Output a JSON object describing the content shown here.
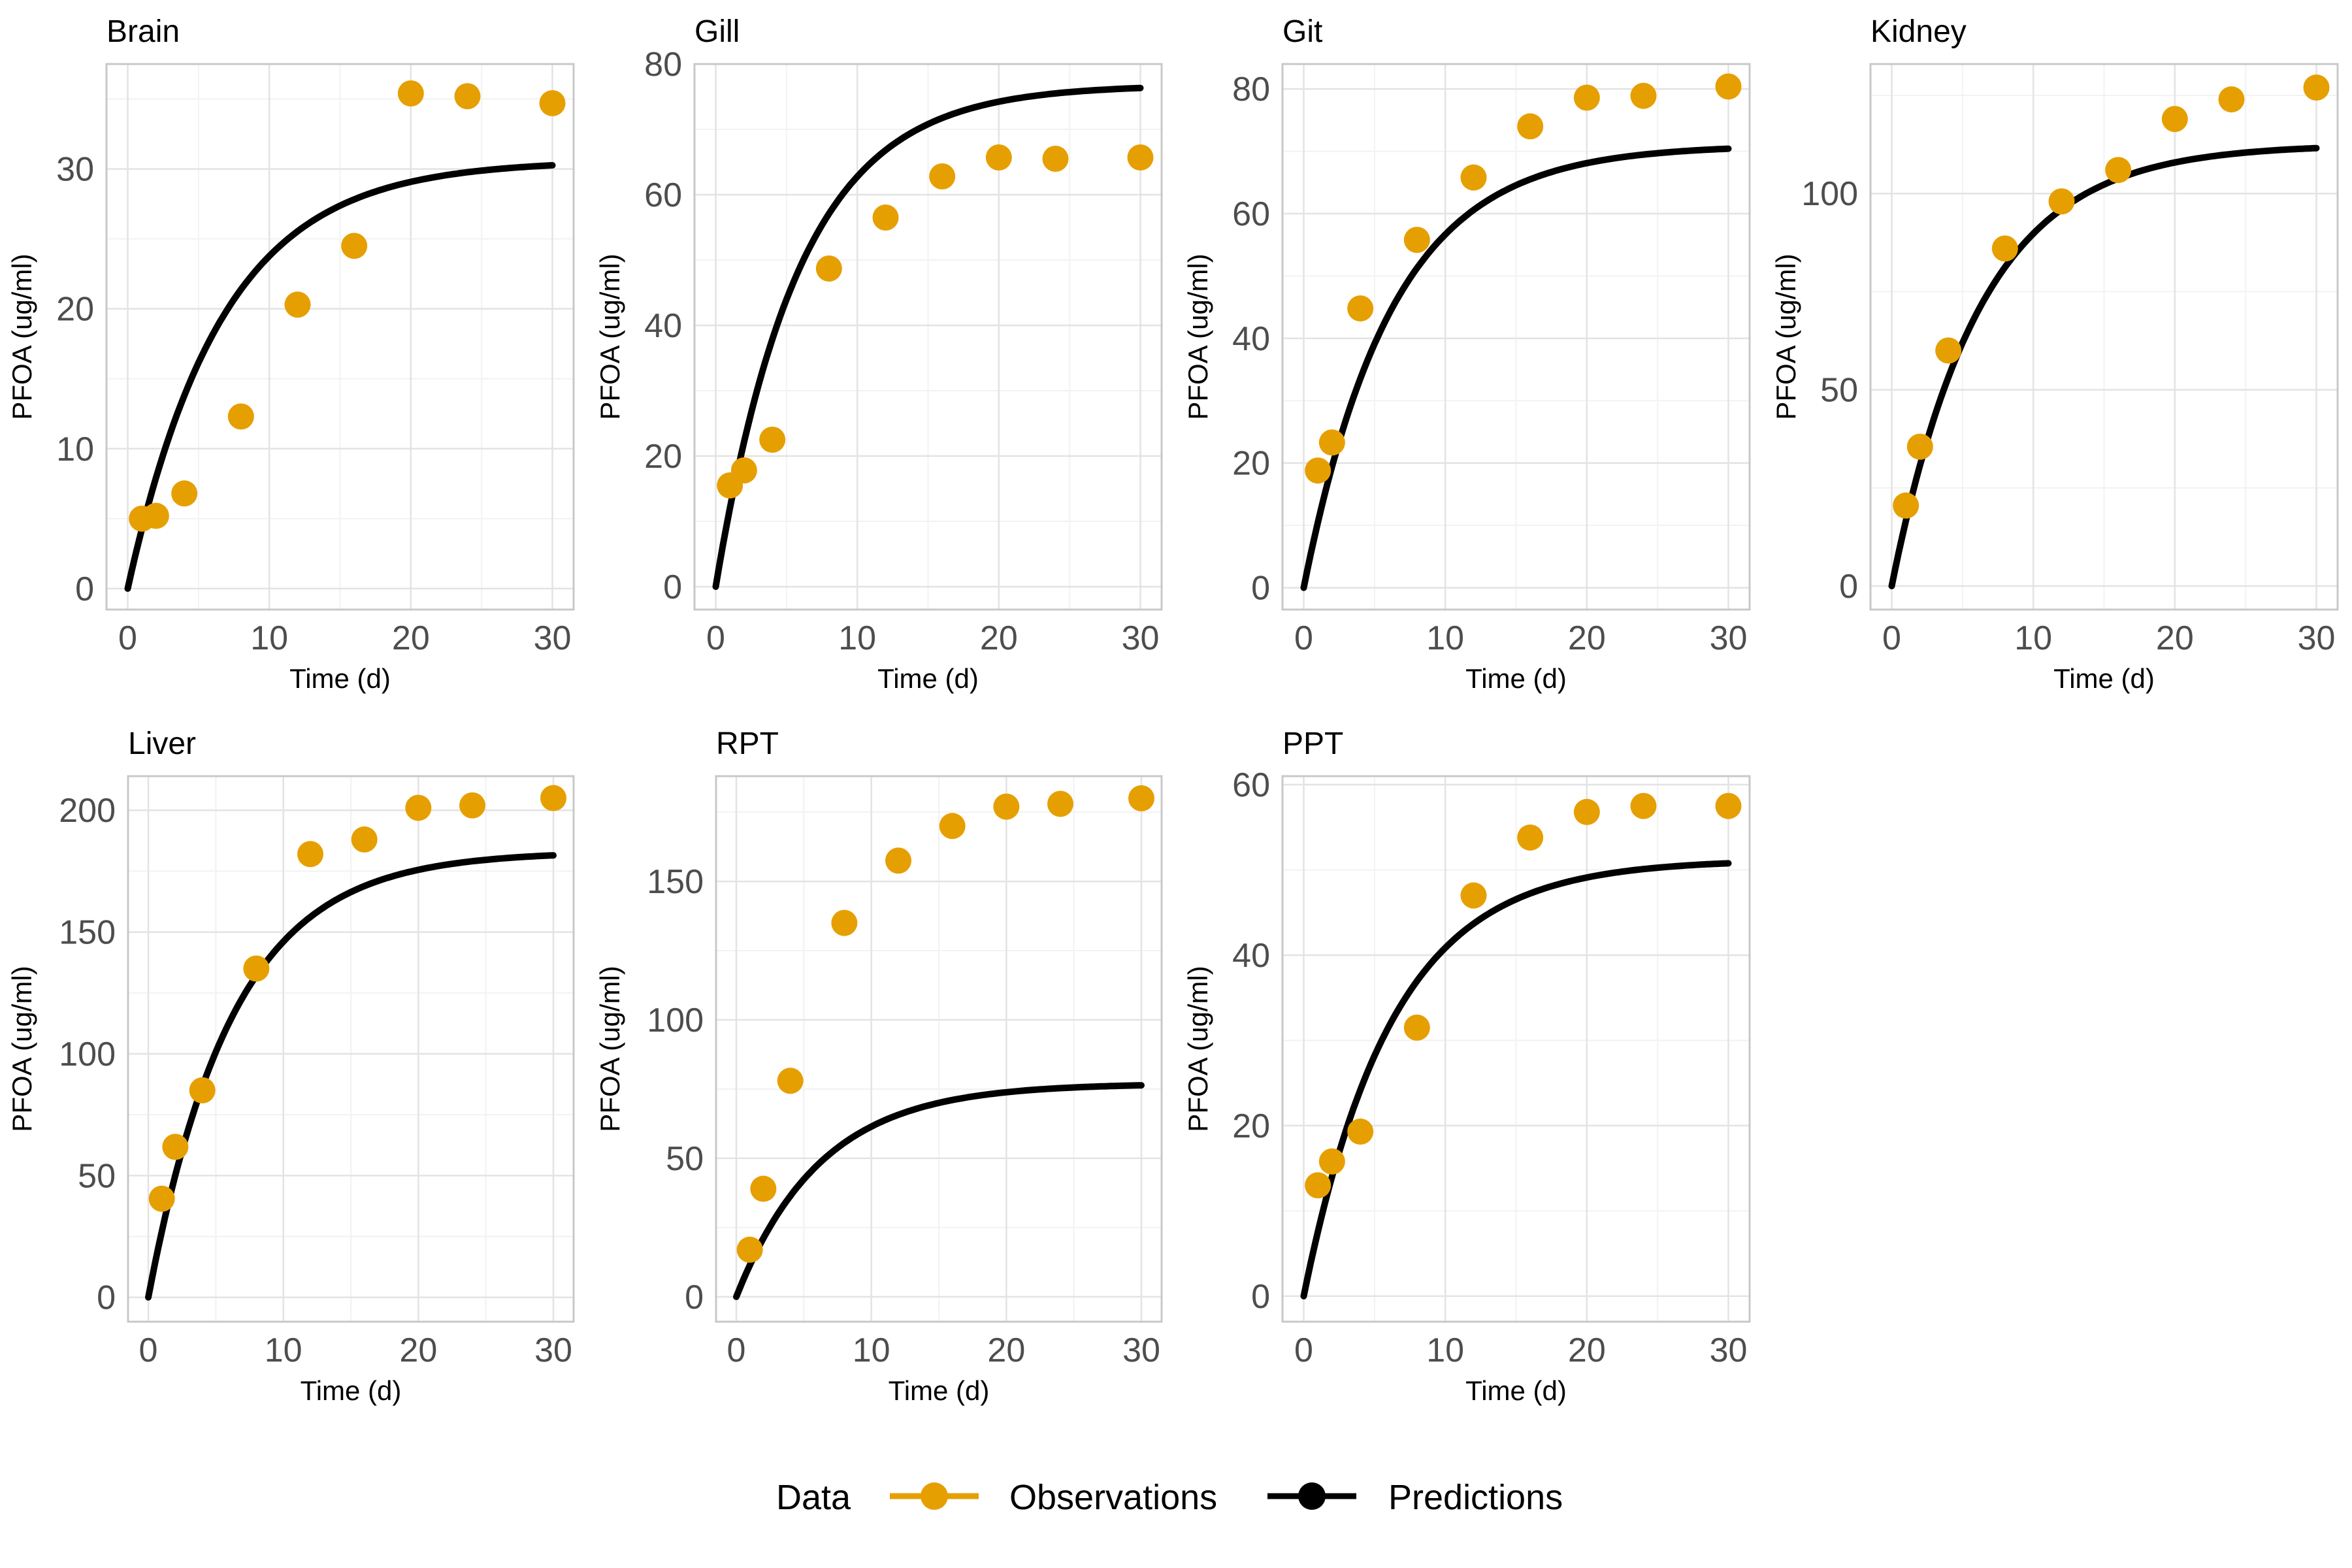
{
  "colors": {
    "observations": "#E69F00",
    "predictions": "#000000",
    "grid_major": "#e3e3e3",
    "grid_minor": "#f2f2f2",
    "panel_border": "#c8c8c8"
  },
  "legend": {
    "title": "Data",
    "items": [
      {
        "label": "Observations",
        "kind": "point-line",
        "color": "#E69F00"
      },
      {
        "label": "Predictions",
        "kind": "point-line",
        "color": "#000000"
      }
    ]
  },
  "chart_data": [
    {
      "type": "scatter+line",
      "title": "Brain",
      "xlabel": "Time (d)",
      "ylabel": "PFOA (ug/ml)",
      "xlim": [
        -1.5,
        31.5
      ],
      "ylim": [
        -1.5,
        37.5
      ],
      "xticks": [
        0,
        10,
        20,
        30
      ],
      "yticks": [
        0,
        10,
        20,
        30
      ],
      "observations": {
        "x": [
          1,
          2,
          4,
          8,
          12,
          16,
          20,
          24,
          30
        ],
        "y": [
          5.0,
          5.2,
          6.8,
          12.3,
          20.3,
          24.5,
          35.4,
          35.2,
          34.7
        ]
      },
      "predictions": {
        "plateau": 30.6,
        "rate": 0.15
      }
    },
    {
      "type": "scatter+line",
      "title": "Gill",
      "xlabel": "Time (d)",
      "ylabel": "PFOA (ug/ml)",
      "xlim": [
        -1.5,
        31.5
      ],
      "ylim": [
        -3.5,
        80
      ],
      "xticks": [
        0,
        10,
        20,
        30
      ],
      "yticks": [
        0,
        20,
        40,
        60,
        80
      ],
      "observations": {
        "x": [
          1,
          2,
          4,
          8,
          12,
          16,
          20,
          24,
          30
        ],
        "y": [
          15.5,
          17.8,
          22.5,
          48.7,
          56.5,
          62.8,
          65.7,
          65.5,
          65.7
        ]
      },
      "predictions": {
        "plateau": 76.8,
        "rate": 0.17
      }
    },
    {
      "type": "scatter+line",
      "title": "Git",
      "xlabel": "Time (d)",
      "ylabel": "PFOA (ug/ml)",
      "xlim": [
        -1.5,
        31.5
      ],
      "ylim": [
        -3.5,
        84
      ],
      "xticks": [
        0,
        10,
        20,
        30
      ],
      "yticks": [
        0,
        20,
        40,
        60,
        80
      ],
      "observations": {
        "x": [
          1,
          2,
          4,
          8,
          12,
          16,
          20,
          24,
          30
        ],
        "y": [
          18.8,
          23.3,
          44.8,
          55.8,
          65.8,
          74.0,
          78.6,
          78.9,
          80.4
        ]
      },
      "predictions": {
        "plateau": 71.0,
        "rate": 0.16
      }
    },
    {
      "type": "scatter+line",
      "title": "Kidney",
      "xlabel": "Time (d)",
      "ylabel": "PFOA (ug/ml)",
      "xlim": [
        -1.5,
        31.5
      ],
      "ylim": [
        -6,
        133
      ],
      "xticks": [
        0,
        10,
        20,
        30
      ],
      "yticks": [
        0,
        50,
        100
      ],
      "observations": {
        "x": [
          1,
          2,
          4,
          8,
          12,
          16,
          20,
          24,
          30
        ],
        "y": [
          20.5,
          35.5,
          60.0,
          86.0,
          98.0,
          106.0,
          119.0,
          124.0,
          127.0
        ]
      },
      "predictions": {
        "plateau": 112.5,
        "rate": 0.16
      }
    },
    {
      "type": "scatter+line",
      "title": "Liver",
      "xlabel": "Time (d)",
      "ylabel": "PFOA (ug/ml)",
      "xlim": [
        -1.5,
        31.5
      ],
      "ylim": [
        -10,
        214
      ],
      "xticks": [
        0,
        10,
        20,
        30
      ],
      "yticks": [
        0,
        50,
        100,
        150,
        200
      ],
      "observations": {
        "x": [
          1,
          2,
          4,
          8,
          12,
          16,
          20,
          24,
          30
        ],
        "y": [
          40.5,
          61.8,
          85.0,
          135.0,
          182.0,
          188.0,
          201.0,
          202.0,
          205.0
        ]
      },
      "predictions": {
        "plateau": 183.0,
        "rate": 0.16
      }
    },
    {
      "type": "scatter+line",
      "title": "RPT",
      "xlabel": "Time (d)",
      "ylabel": "PFOA (ug/ml)",
      "xlim": [
        -1.5,
        31.5
      ],
      "ylim": [
        -9,
        188
      ],
      "xticks": [
        0,
        10,
        20,
        30
      ],
      "yticks": [
        0,
        50,
        100,
        150
      ],
      "observations": {
        "x": [
          1,
          2,
          4,
          8,
          12,
          16,
          20,
          24,
          30
        ],
        "y": [
          17.0,
          39.0,
          78.0,
          135.0,
          157.5,
          170.0,
          177.0,
          178.0,
          180.0
        ]
      },
      "predictions": {
        "plateau": 77.0,
        "rate": 0.16
      }
    },
    {
      "type": "scatter+line",
      "title": "PPT",
      "xlabel": "Time (d)",
      "ylabel": "PFOA (ug/ml)",
      "xlim": [
        -1.5,
        31.5
      ],
      "ylim": [
        -3,
        61
      ],
      "xticks": [
        0,
        10,
        20,
        30
      ],
      "yticks": [
        0,
        20,
        40,
        60
      ],
      "observations": {
        "x": [
          1,
          2,
          4,
          8,
          12,
          16,
          20,
          24,
          30
        ],
        "y": [
          13.0,
          15.8,
          19.3,
          31.5,
          47.0,
          53.8,
          56.8,
          57.5,
          57.5
        ]
      },
      "predictions": {
        "plateau": 51.2,
        "rate": 0.16
      }
    }
  ]
}
